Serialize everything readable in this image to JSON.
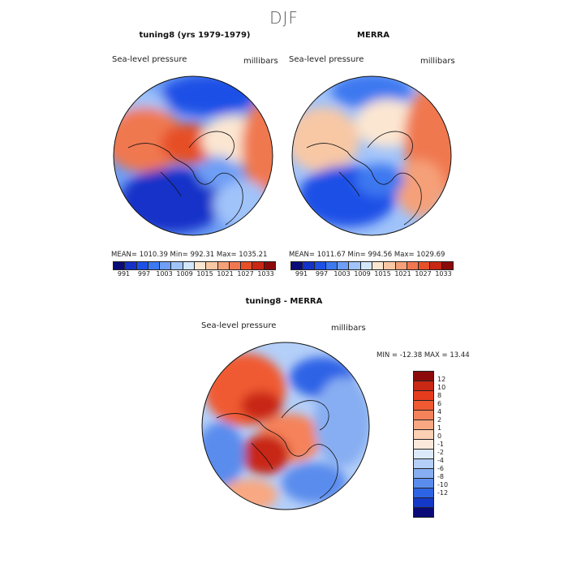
{
  "season": "DJF",
  "panels": {
    "model": {
      "title": "tuning8 (yrs 1979-1979)",
      "field": "Sea-level pressure",
      "units": "millibars",
      "stats": "MEAN= 1010.39   Min= 992.31   Max= 1035.21"
    },
    "obs": {
      "title": "MERRA",
      "field": "Sea-level pressure",
      "units": "millibars",
      "stats": "MEAN= 1011.67   Min= 994.56   Max= 1029.69"
    },
    "diff": {
      "title": "tuning8 - MERRA",
      "field": "Sea-level pressure",
      "units": "millibars",
      "minmax": "MIN = -12.38 MAX =  13.44"
    }
  },
  "slp_colorbar": {
    "labels": [
      "991",
      "997",
      "1003",
      "1009",
      "1015",
      "1021",
      "1027",
      "1033"
    ],
    "colors": [
      "#0a0a78",
      "#1432c8",
      "#1e50e6",
      "#3c78f0",
      "#6e9ef5",
      "#a0c3fa",
      "#d2e6fc",
      "#fbe6d2",
      "#f8c8a5",
      "#f5a078",
      "#f07850",
      "#e65028",
      "#c82814",
      "#8c0a0a"
    ]
  },
  "diff_colorbar": {
    "labels": [
      "12",
      "10",
      "8",
      "6",
      "4",
      "2",
      "1",
      "0",
      "-1",
      "-2",
      "-4",
      "-6",
      "-8",
      "-10",
      "-12"
    ],
    "colors": [
      "#8c0a0a",
      "#c82814",
      "#e63c1e",
      "#f05a32",
      "#f5825a",
      "#f8a882",
      "#fbd0b4",
      "#fbe9dc",
      "#dce9fa",
      "#b4cff8",
      "#87aef2",
      "#5a8ced",
      "#2d64e6",
      "#1438c8",
      "#0a0a78"
    ]
  },
  "colors": {
    "coast": "#111111"
  }
}
